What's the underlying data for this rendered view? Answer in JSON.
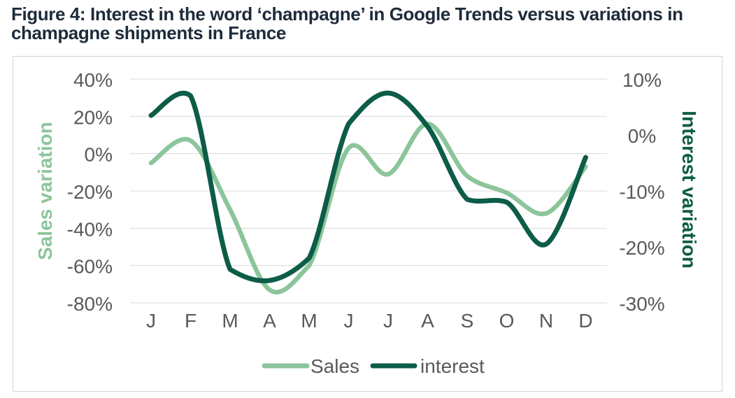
{
  "title": {
    "line1": "Figure 4: Interest in the word ‘champagne’ in Google Trends versus variations in",
    "line2": "champagne shipments in France"
  },
  "chart": {
    "left_ticks": [
      "40%",
      "20%",
      "0%",
      "-20%",
      "-40%",
      "-60%",
      "-80%"
    ],
    "right_ticks": [
      "10%",
      "0%",
      "-10%",
      "-20%",
      "-30%"
    ],
    "legend": [
      {
        "label": "Sales",
        "color": "#8cc59b"
      },
      {
        "label": "interest",
        "color": "#0d5c48"
      }
    ]
  },
  "chart_data": {
    "type": "line",
    "categories": [
      "J",
      "F",
      "M",
      "A",
      "M",
      "J",
      "J",
      "A",
      "S",
      "O",
      "N",
      "D"
    ],
    "series": [
      {
        "name": "Sales",
        "axis": "left",
        "color": "#8cc59b",
        "stroke_width": 6.5,
        "values": [
          -5,
          7,
          -30,
          -73,
          -60,
          3,
          -11,
          16,
          -12,
          -21,
          -32,
          -7
        ]
      },
      {
        "name": "interest",
        "axis": "right",
        "color": "#0d5c48",
        "stroke_width": 7,
        "values": [
          3.5,
          7,
          -24,
          -26,
          -22,
          2,
          7.5,
          1.5,
          -11.5,
          -12,
          -19.5,
          -4
        ]
      }
    ],
    "left_axis": {
      "label": "Sales variation",
      "range": [
        -80,
        40
      ],
      "tick_step": 20,
      "unit": "%"
    },
    "right_axis": {
      "label": "Interest variation",
      "range": [
        -30,
        10
      ],
      "tick_step": 10,
      "unit": "%"
    },
    "grid": true,
    "smooth": true,
    "legend_position": "bottom",
    "title": "Figure 4: Interest in the word ‘champagne’ in Google Trends versus variations in champagne shipments in France"
  },
  "colors": {
    "title": "#1e2b3a",
    "axis_text": "#595959",
    "legend_text": "#595959",
    "grid": "#d9d9d9",
    "card_border": "#d4d4d4",
    "sales": "#8cc59b",
    "interest": "#0d5c48"
  }
}
